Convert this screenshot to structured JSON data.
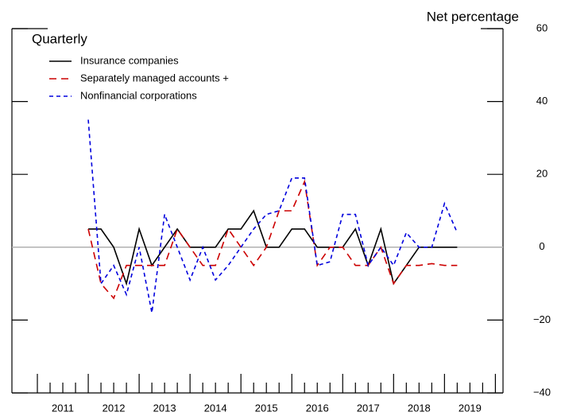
{
  "chart_data": {
    "type": "line",
    "title": "Net percentage",
    "legend_title": "Quarterly",
    "x": [
      2012.0,
      2012.25,
      2012.5,
      2012.75,
      2013.0,
      2013.25,
      2013.5,
      2013.75,
      2014.0,
      2014.25,
      2014.5,
      2014.75,
      2015.0,
      2015.25,
      2015.5,
      2015.75,
      2016.0,
      2016.25,
      2016.5,
      2016.75,
      2017.0,
      2017.25,
      2017.5,
      2017.75,
      2018.0,
      2018.25,
      2018.5,
      2018.75,
      2019.0,
      2019.25
    ],
    "series": [
      {
        "name": "Insurance companies",
        "color": "#000000",
        "dash": "none",
        "values": [
          5,
          5,
          0,
          -10,
          5,
          -5,
          0,
          5,
          0,
          0,
          0,
          5,
          5,
          10,
          0,
          0,
          5,
          5,
          0,
          0,
          0,
          5,
          -5,
          5,
          -10,
          -5,
          0,
          0,
          0,
          0
        ]
      },
      {
        "name": "Separately managed accounts +",
        "color": "#cc0000",
        "dash": "9 6",
        "values": [
          5,
          -10,
          -14,
          -5,
          -5,
          -5,
          -5,
          5,
          0,
          -5,
          -5,
          5,
          0,
          -5,
          0,
          10,
          10,
          18,
          -5,
          0,
          0,
          -5,
          -5,
          0,
          -10,
          -5,
          -5,
          -4.5,
          -5,
          -5
        ]
      },
      {
        "name": "Nonfinancial corporations",
        "color": "#0000dd",
        "dash": "5 4",
        "values": [
          35,
          -10,
          -5,
          -13,
          0,
          -18,
          9,
          0,
          -9,
          0,
          -9,
          -5,
          0,
          5,
          9,
          10,
          19,
          19,
          -5,
          -4,
          9,
          9,
          -5,
          0,
          -5,
          4,
          0,
          0,
          12,
          4
        ]
      }
    ],
    "xlim": [
      2010.5,
      2020.15
    ],
    "xticks": [
      2011,
      2012,
      2013,
      2014,
      2015,
      2016,
      2017,
      2018,
      2019
    ],
    "ylim": [
      -40,
      60
    ],
    "yticks": [
      {
        "value": -40,
        "label": "−40"
      },
      {
        "value": -20,
        "label": "−20"
      },
      0,
      20,
      40,
      60
    ],
    "zero_line": true
  }
}
